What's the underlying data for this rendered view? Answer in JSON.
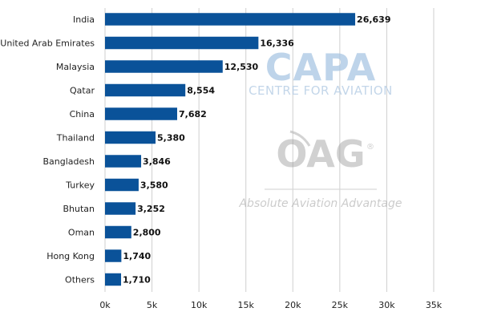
{
  "chart_data": {
    "type": "bar",
    "orientation": "horizontal",
    "categories": [
      "India",
      "United Arab Emirates",
      "Malaysia",
      "Qatar",
      "China",
      "Thailand",
      "Bangladesh",
      "Turkey",
      "Bhutan",
      "Oman",
      "Hong Kong",
      "Others"
    ],
    "values": [
      26639,
      16336,
      12530,
      8554,
      7682,
      5380,
      3846,
      3580,
      3252,
      2800,
      1740,
      1710
    ],
    "value_labels": [
      "26,639",
      "16,336",
      "12,530",
      "8,554",
      "7,682",
      "5,380",
      "3,846",
      "3,580",
      "3,252",
      "2,800",
      "1,740",
      "1,710"
    ],
    "x_ticks": [
      0,
      5000,
      10000,
      15000,
      20000,
      25000,
      30000,
      35000
    ],
    "x_tick_labels": [
      "0k",
      "5k",
      "10k",
      "15k",
      "20k",
      "25k",
      "30k",
      "35k"
    ],
    "xlim": [
      0,
      35000
    ],
    "title": "",
    "xlabel": "",
    "ylabel": "",
    "grid": "vertical",
    "bar_color": "#0a5299",
    "grid_color": "#cfcfcf"
  },
  "watermark": {
    "capa_title": "CAPA",
    "capa_subtitle": "CENTRE FOR AVIATION",
    "oag_title": "OAG",
    "oag_tagline": "Absolute Aviation Advantage",
    "oag_mark": "®"
  }
}
